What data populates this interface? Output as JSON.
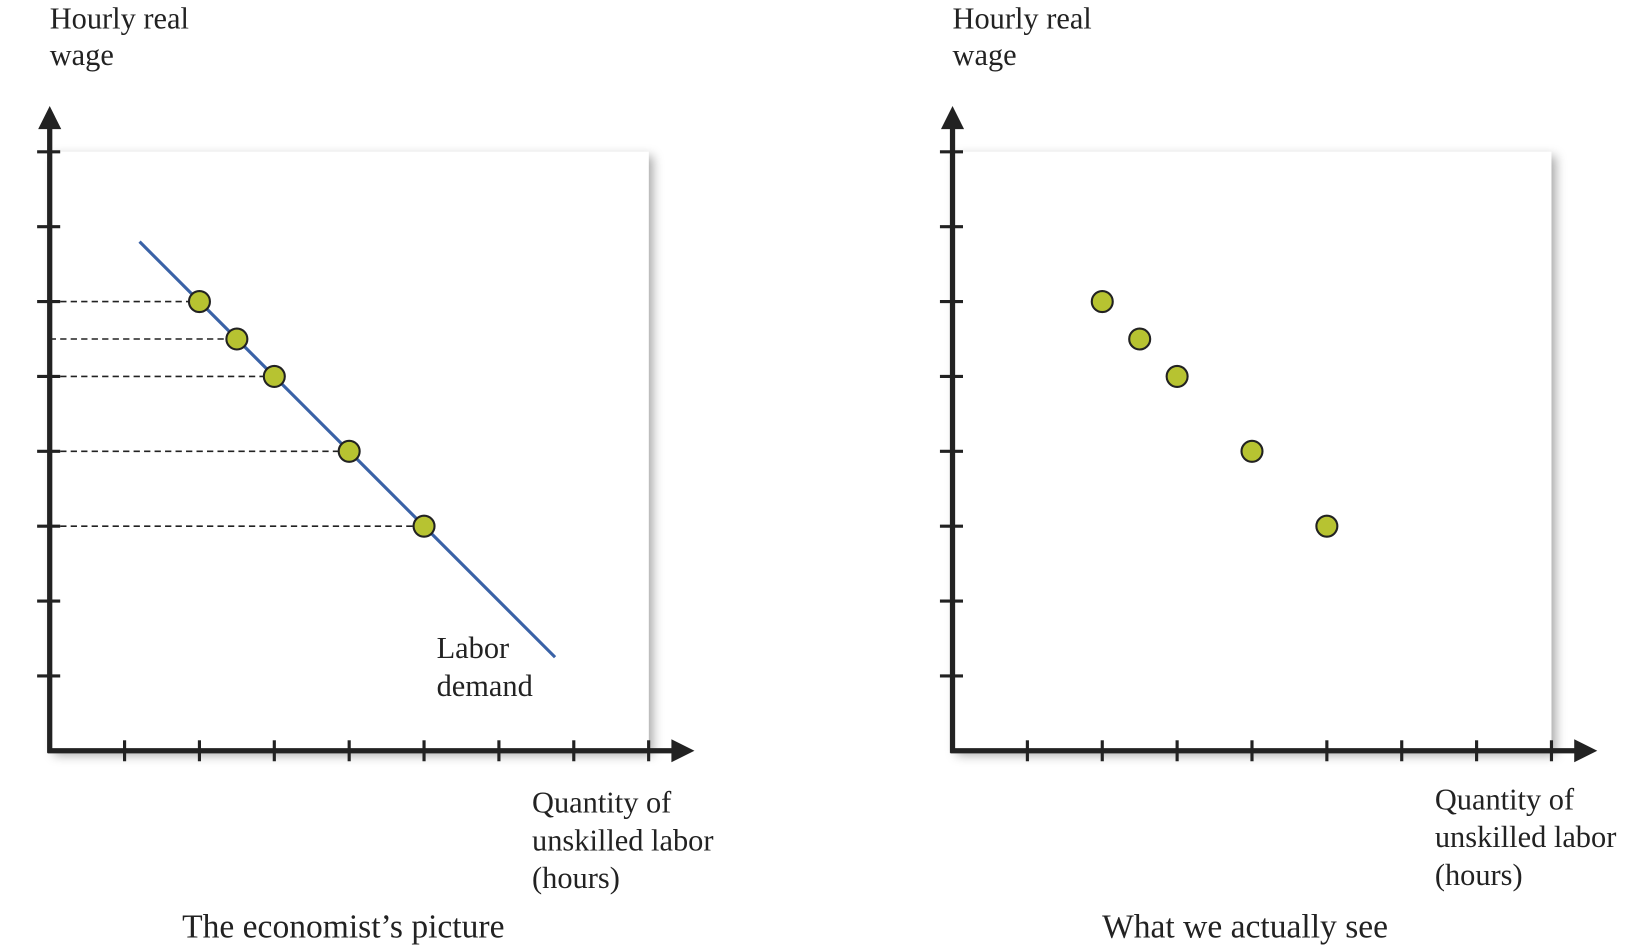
{
  "chart_data": [
    {
      "type": "scatter",
      "title": "The economist’s picture",
      "ylabel": [
        "Hourly real",
        "wage"
      ],
      "xlabel": [
        "Quantity of",
        "unskilled labor",
        "(hours)"
      ],
      "xlim": [
        0,
        8.5
      ],
      "ylim": [
        0,
        8.5
      ],
      "xticks": [
        1,
        2,
        3,
        4,
        5,
        6,
        7,
        8
      ],
      "yticks": [
        1,
        2,
        3,
        4,
        5,
        6,
        7,
        8
      ],
      "guides": true,
      "series": [
        {
          "type": "line",
          "color": "#3a62a7",
          "x": [
            1.2,
            6.75
          ],
          "values": [
            6.8,
            1.25
          ],
          "label": [
            "Labor",
            "demand"
          ]
        },
        {
          "type": "scatter",
          "color": "#b7c331",
          "x": [
            2,
            2.5,
            3,
            4,
            5
          ],
          "values": [
            6,
            5.5,
            5,
            4,
            3
          ]
        }
      ]
    },
    {
      "type": "scatter",
      "title": "What we actually see",
      "ylabel": [
        "Hourly real",
        "wage"
      ],
      "xlabel": [
        "Quantity of",
        "unskilled labor",
        "(hours)"
      ],
      "xlim": [
        0,
        8.5
      ],
      "ylim": [
        0,
        8.5
      ],
      "xticks": [
        1,
        2,
        3,
        4,
        5,
        6,
        7,
        8
      ],
      "yticks": [
        1,
        2,
        3,
        4,
        5,
        6,
        7,
        8
      ],
      "guides": false,
      "series": [
        {
          "type": "scatter",
          "color": "#b7c331",
          "x": [
            2,
            2.5,
            3,
            4,
            5
          ],
          "values": [
            6,
            5.5,
            5,
            4,
            3
          ]
        }
      ]
    }
  ]
}
